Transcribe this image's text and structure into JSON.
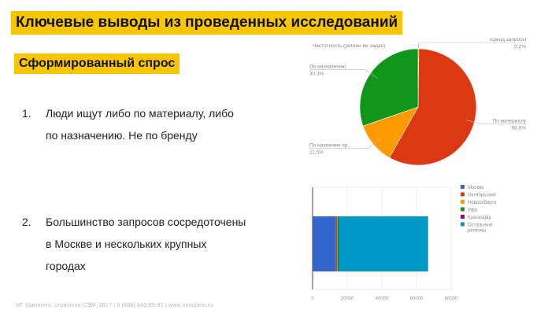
{
  "slide": {
    "title": "Ключевые выводы из проведенных исследований",
    "subtitle": "Сформированный спрос",
    "points": [
      {
        "number": "1.",
        "lines": [
          "Люди ищут либо по материалу, либо",
          "по назначению. Не по бренду"
        ]
      },
      {
        "number": "2.",
        "lines": [
          "Большинство запросов сосредоточены",
          "в Москве и нескольких крупных",
          "городах"
        ]
      }
    ],
    "footer": "МГ Комплето, стратегия СЭМ, 2017 | 8 (495) 640-89-97 | www.completo.ru"
  },
  "chart_data": [
    {
      "type": "pie",
      "title": "Частотность (регион не задан)",
      "slices": [
        {
          "label": "Бренд запросы",
          "value": 0.2,
          "pct_label": "0,2%",
          "color": "#ff9900"
        },
        {
          "label": "По материалу",
          "value": 58.0,
          "pct_label": "58,0%",
          "color": "#dc3912"
        },
        {
          "label": "По названию пр...",
          "value": 11.5,
          "pct_label": "11,5%",
          "color": "#ff9900"
        },
        {
          "label": "По назначению",
          "value": 30.3,
          "pct_label": "30,3%",
          "color": "#109618"
        }
      ]
    },
    {
      "type": "bar",
      "orientation": "horizontal",
      "stacked": true,
      "series": [
        {
          "name": "Москва",
          "value": 13500,
          "color": "#3366cc"
        },
        {
          "name": "Октябрьский",
          "value": 600,
          "color": "#dc3912"
        },
        {
          "name": "Новосибирск",
          "value": 300,
          "color": "#ff9900"
        },
        {
          "name": "Уфа",
          "value": 250,
          "color": "#109618"
        },
        {
          "name": "Краснодар",
          "value": 250,
          "color": "#990099"
        },
        {
          "name": "Остальные регионы",
          "value": 51800,
          "color": "#0099c6"
        }
      ],
      "xticks": [
        "0",
        "20000",
        "40000",
        "60000",
        "80000"
      ],
      "xlim": [
        0,
        80000
      ],
      "legend": "right"
    }
  ]
}
